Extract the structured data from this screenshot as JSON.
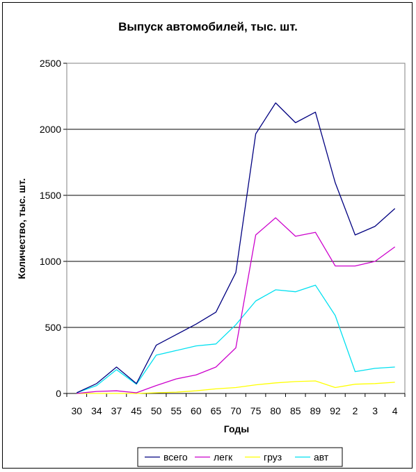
{
  "chart_data": {
    "type": "line",
    "title": "Выпуск автомобилей, тыс. шт.",
    "xlabel": "Годы",
    "ylabel": "Количество, тыс. шт.",
    "ylim": [
      0,
      2500
    ],
    "yticks": [
      "0",
      "500",
      "1000",
      "1500",
      "2000",
      "2500"
    ],
    "grid": true,
    "legend_position": "bottom",
    "categories": [
      "30",
      "34",
      "37",
      "45",
      "50",
      "55",
      "60",
      "65",
      "70",
      "75",
      "80",
      "85",
      "89",
      "92",
      "2",
      "3",
      "4"
    ],
    "series": [
      {
        "name": "всего",
        "color": "#000080",
        "values": [
          5,
          75,
          200,
          75,
          365,
          445,
          525,
          615,
          915,
          1965,
          2200,
          2050,
          2130,
          1595,
          1200,
          1265,
          1400
        ]
      },
      {
        "name": "легк",
        "color": "#cc00cc",
        "values": [
          0,
          15,
          20,
          5,
          60,
          110,
          140,
          200,
          345,
          1200,
          1330,
          1190,
          1220,
          965,
          965,
          1000,
          1110
        ]
      },
      {
        "name": "груз",
        "color": "#ffff00",
        "values": [
          0,
          0,
          0,
          0,
          5,
          10,
          20,
          35,
          45,
          65,
          80,
          90,
          95,
          45,
          70,
          75,
          85
        ]
      },
      {
        "name": "авт",
        "color": "#00e0f0",
        "values": [
          5,
          60,
          180,
          70,
          290,
          325,
          360,
          375,
          520,
          700,
          785,
          770,
          820,
          590,
          165,
          190,
          200
        ]
      }
    ]
  }
}
